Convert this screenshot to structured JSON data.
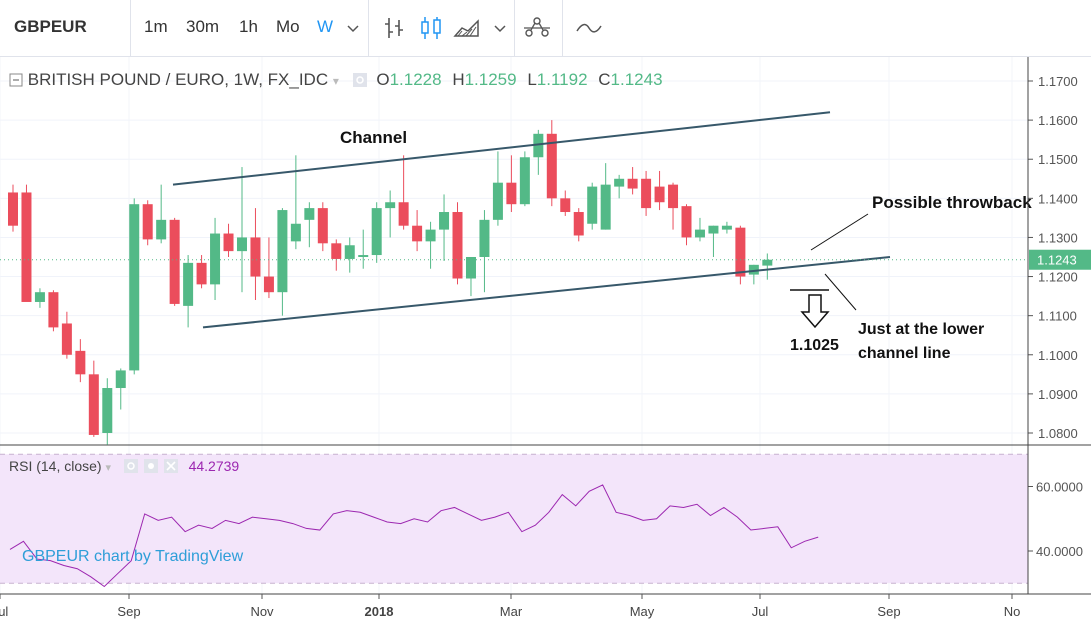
{
  "toolbar": {
    "symbol": "GBPEUR",
    "intervals": [
      "1m",
      "30m",
      "1h",
      "Mo",
      "W"
    ],
    "active_interval": "W",
    "icons": [
      "chevron-down-icon",
      "bar-chart-icon",
      "candlestick-icon",
      "area-chart-icon",
      "chevron-down-icon",
      "indicators-icon",
      "compare-line-icon"
    ]
  },
  "header": {
    "title": "BRITISH POUND / EURO, 1W, FX_IDC",
    "open_label": "O",
    "open_value": "1.1228",
    "high_label": "H",
    "high_value": "1.1259",
    "low_label": "L",
    "low_value": "1.1192",
    "close_label": "C",
    "close_value": "1.1243"
  },
  "rsi": {
    "label": "RSI (14, close)",
    "value": "44.2739"
  },
  "watermark": "GBPEUR chart by TradingView",
  "colors": {
    "up": "#53b987",
    "down": "#eb4d5c",
    "channel": "#37586a",
    "rsi": "#9c27b0",
    "rsi_band": "#f3e5fa",
    "price_line": "#53b987"
  },
  "chart_data": [
    {
      "type": "candlestick",
      "title": "BRITISH POUND / EURO, 1W, FX_IDC",
      "xlabel": "",
      "ylabel": "",
      "ylim": [
        1.077,
        1.176
      ],
      "y_ticks": [
        "1.1700",
        "1.1600",
        "1.1500",
        "1.1400",
        "1.1300",
        "1.1200",
        "1.1100",
        "1.1000",
        "1.0900",
        "1.0800"
      ],
      "x_ticks": [
        "Jul",
        "Sep",
        "Nov",
        "2018",
        "Mar",
        "May",
        "Jul",
        "Sep",
        "No"
      ],
      "last_price": "1.1243",
      "candles": [
        {
          "o": 1.1415,
          "h": 1.1435,
          "l": 1.1315,
          "c": 1.133
        },
        {
          "o": 1.1415,
          "h": 1.1435,
          "l": 1.114,
          "c": 1.1135
        },
        {
          "o": 1.1135,
          "h": 1.117,
          "l": 1.112,
          "c": 1.116
        },
        {
          "o": 1.116,
          "h": 1.1165,
          "l": 1.106,
          "c": 1.107
        },
        {
          "o": 1.108,
          "h": 1.111,
          "l": 1.099,
          "c": 1.1
        },
        {
          "o": 1.101,
          "h": 1.104,
          "l": 1.093,
          "c": 1.095
        },
        {
          "o": 1.095,
          "h": 1.0985,
          "l": 1.079,
          "c": 1.0795
        },
        {
          "o": 1.08,
          "h": 1.094,
          "l": 1.077,
          "c": 1.0915
        },
        {
          "o": 1.0915,
          "h": 1.0965,
          "l": 1.086,
          "c": 1.096
        },
        {
          "o": 1.096,
          "h": 1.14,
          "l": 1.095,
          "c": 1.1385
        },
        {
          "o": 1.1385,
          "h": 1.1395,
          "l": 1.128,
          "c": 1.1295
        },
        {
          "o": 1.1295,
          "h": 1.1435,
          "l": 1.1285,
          "c": 1.1345
        },
        {
          "o": 1.1345,
          "h": 1.135,
          "l": 1.1125,
          "c": 1.113
        },
        {
          "o": 1.1125,
          "h": 1.1255,
          "l": 1.107,
          "c": 1.1235
        },
        {
          "o": 1.1235,
          "h": 1.1255,
          "l": 1.117,
          "c": 1.118
        },
        {
          "o": 1.118,
          "h": 1.135,
          "l": 1.114,
          "c": 1.131
        },
        {
          "o": 1.131,
          "h": 1.1335,
          "l": 1.125,
          "c": 1.1265
        },
        {
          "o": 1.1265,
          "h": 1.148,
          "l": 1.116,
          "c": 1.13
        },
        {
          "o": 1.13,
          "h": 1.1375,
          "l": 1.114,
          "c": 1.12
        },
        {
          "o": 1.12,
          "h": 1.13,
          "l": 1.1145,
          "c": 1.116
        },
        {
          "o": 1.116,
          "h": 1.1375,
          "l": 1.11,
          "c": 1.137
        },
        {
          "o": 1.129,
          "h": 1.151,
          "l": 1.127,
          "c": 1.1335
        },
        {
          "o": 1.1345,
          "h": 1.139,
          "l": 1.1275,
          "c": 1.1375
        },
        {
          "o": 1.1375,
          "h": 1.139,
          "l": 1.1265,
          "c": 1.1285
        },
        {
          "o": 1.1285,
          "h": 1.1295,
          "l": 1.1215,
          "c": 1.1245
        },
        {
          "o": 1.1245,
          "h": 1.13,
          "l": 1.121,
          "c": 1.128
        },
        {
          "o": 1.125,
          "h": 1.132,
          "l": 1.122,
          "c": 1.1255
        },
        {
          "o": 1.1255,
          "h": 1.139,
          "l": 1.1235,
          "c": 1.1375
        },
        {
          "o": 1.1375,
          "h": 1.142,
          "l": 1.13,
          "c": 1.139
        },
        {
          "o": 1.139,
          "h": 1.151,
          "l": 1.132,
          "c": 1.133
        },
        {
          "o": 1.133,
          "h": 1.137,
          "l": 1.1265,
          "c": 1.129
        },
        {
          "o": 1.129,
          "h": 1.134,
          "l": 1.122,
          "c": 1.132
        },
        {
          "o": 1.132,
          "h": 1.141,
          "l": 1.124,
          "c": 1.1365
        },
        {
          "o": 1.1365,
          "h": 1.139,
          "l": 1.118,
          "c": 1.1195
        },
        {
          "o": 1.1195,
          "h": 1.125,
          "l": 1.115,
          "c": 1.125
        },
        {
          "o": 1.125,
          "h": 1.137,
          "l": 1.116,
          "c": 1.1345
        },
        {
          "o": 1.1345,
          "h": 1.152,
          "l": 1.133,
          "c": 1.144
        },
        {
          "o": 1.144,
          "h": 1.151,
          "l": 1.1365,
          "c": 1.1385
        },
        {
          "o": 1.1385,
          "h": 1.152,
          "l": 1.138,
          "c": 1.1505
        },
        {
          "o": 1.1505,
          "h": 1.1575,
          "l": 1.146,
          "c": 1.1565
        },
        {
          "o": 1.1565,
          "h": 1.16,
          "l": 1.138,
          "c": 1.14
        },
        {
          "o": 1.14,
          "h": 1.142,
          "l": 1.1355,
          "c": 1.1365
        },
        {
          "o": 1.1365,
          "h": 1.1375,
          "l": 1.129,
          "c": 1.1305
        },
        {
          "o": 1.1335,
          "h": 1.144,
          "l": 1.132,
          "c": 1.143
        },
        {
          "o": 1.132,
          "h": 1.149,
          "l": 1.132,
          "c": 1.1435
        },
        {
          "o": 1.143,
          "h": 1.146,
          "l": 1.14,
          "c": 1.145
        },
        {
          "o": 1.145,
          "h": 1.148,
          "l": 1.141,
          "c": 1.1425
        },
        {
          "o": 1.145,
          "h": 1.147,
          "l": 1.1355,
          "c": 1.1375
        },
        {
          "o": 1.143,
          "h": 1.147,
          "l": 1.137,
          "c": 1.139
        },
        {
          "o": 1.1435,
          "h": 1.144,
          "l": 1.132,
          "c": 1.1375
        },
        {
          "o": 1.138,
          "h": 1.1385,
          "l": 1.128,
          "c": 1.13
        },
        {
          "o": 1.13,
          "h": 1.135,
          "l": 1.129,
          "c": 1.132
        },
        {
          "o": 1.131,
          "h": 1.133,
          "l": 1.125,
          "c": 1.133
        },
        {
          "o": 1.132,
          "h": 1.134,
          "l": 1.131,
          "c": 1.133
        },
        {
          "o": 1.1325,
          "h": 1.133,
          "l": 1.118,
          "c": 1.12
        },
        {
          "o": 1.1205,
          "h": 1.123,
          "l": 1.118,
          "c": 1.123
        },
        {
          "o": 1.1228,
          "h": 1.1259,
          "l": 1.1192,
          "c": 1.1243
        }
      ],
      "channel": {
        "upper": [
          [
            1.1435,
            1.162
          ]
        ],
        "lower": [
          [
            1.107,
            1.125
          ]
        ]
      },
      "annotations": [
        {
          "text": "Channel"
        },
        {
          "text": "Possible throwback"
        },
        {
          "text": "Just at the lower"
        },
        {
          "text": "channel line"
        },
        {
          "text": "1.1025"
        }
      ]
    },
    {
      "type": "line",
      "title": "RSI (14, close)",
      "ylim": [
        27,
        72
      ],
      "y_ticks": [
        "60.0000",
        "40.0000"
      ],
      "band": [
        30,
        70
      ],
      "series": [
        {
          "name": "RSI (14, close)",
          "values": [
            40.5,
            43.0,
            37.5,
            37.0,
            35.5,
            34.5,
            32.0,
            29.0,
            33.0,
            37.0,
            51.5,
            49.5,
            50.5,
            46.0,
            48.0,
            47.0,
            49.5,
            48.5,
            50.5,
            50.0,
            49.5,
            48.5,
            47.0,
            46.5,
            51.5,
            52.5,
            52.0,
            50.5,
            49.0,
            48.5,
            50.0,
            49.0,
            52.5,
            53.5,
            51.5,
            49.5,
            50.5,
            52.0,
            46.0,
            48.0,
            52.0,
            57.5,
            54.0,
            58.5,
            60.5,
            52.0,
            51.0,
            49.5,
            50.0,
            54.0,
            53.5,
            54.5,
            51.0,
            53.5,
            50.5,
            46.5,
            47.0,
            47.5,
            41.0,
            43.0,
            44.3
          ]
        }
      ],
      "last_value": "44.2739"
    }
  ]
}
